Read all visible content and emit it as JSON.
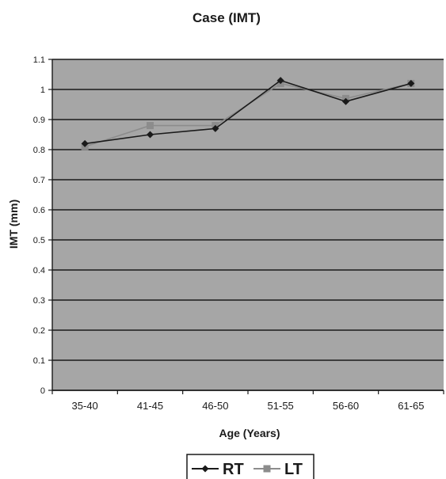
{
  "colors": {
    "plot_background": "#a6a6a6",
    "gridline": "#1a1a1a",
    "rt_series": "#1a1a1a",
    "lt_series": "#8c8c8c"
  },
  "chart_data": {
    "type": "line",
    "title": "Case (IMT)",
    "xlabel": "Age (Years)",
    "ylabel": "IMT (mm)",
    "categories": [
      "35-40",
      "41-45",
      "46-50",
      "51-55",
      "56-60",
      "61-65"
    ],
    "ylim": [
      0,
      1.1
    ],
    "yticks": [
      "0",
      "0.1",
      "0.2",
      "0.3",
      "0.4",
      "0.5",
      "0.6",
      "0.7",
      "0.8",
      "0.9",
      "1",
      "1.1"
    ],
    "grid": true,
    "legend_position": "bottom",
    "series": [
      {
        "name": "RT",
        "marker": "diamond",
        "values": [
          0.82,
          0.85,
          0.87,
          1.03,
          0.96,
          1.02
        ]
      },
      {
        "name": "LT",
        "marker": "square",
        "values": [
          0.81,
          0.88,
          0.88,
          1.02,
          0.97,
          1.02
        ]
      }
    ]
  }
}
